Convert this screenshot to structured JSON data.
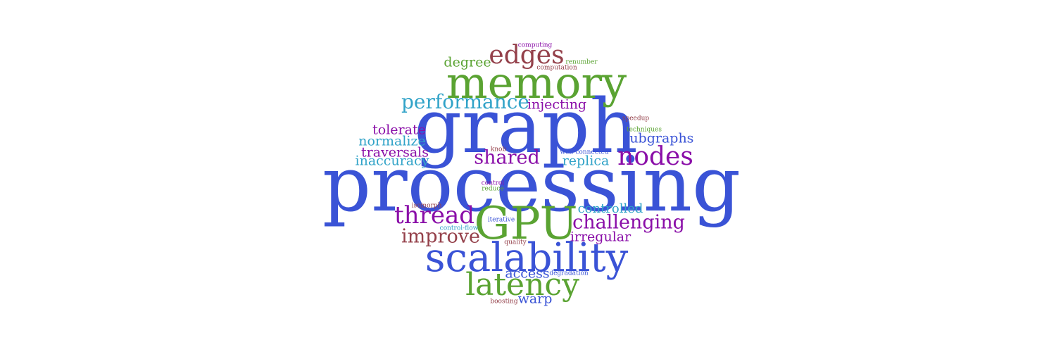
{
  "colors": {
    "blue": "#3a53d6",
    "green": "#5aa332",
    "purple": "#8a0ea8",
    "maroon": "#94404a",
    "cyan": "#31a3c8"
  },
  "words": [
    {
      "text": "processing",
      "color": "blue"
    },
    {
      "text": "graph",
      "color": "blue"
    },
    {
      "text": "memory",
      "color": "green"
    },
    {
      "text": "GPU",
      "color": "green"
    },
    {
      "text": "scalability",
      "color": "blue"
    },
    {
      "text": "latency",
      "color": "green"
    },
    {
      "text": "edges",
      "color": "maroon"
    },
    {
      "text": "nodes",
      "color": "purple"
    },
    {
      "text": "thread",
      "color": "purple"
    },
    {
      "text": "performance",
      "color": "cyan"
    },
    {
      "text": "challenging",
      "color": "purple"
    },
    {
      "text": "shared",
      "color": "purple"
    },
    {
      "text": "improve",
      "color": "maroon"
    },
    {
      "text": "degree",
      "color": "green"
    },
    {
      "text": "injecting",
      "color": "purple"
    },
    {
      "text": "tolerate",
      "color": "purple"
    },
    {
      "text": "normalize",
      "color": "cyan"
    },
    {
      "text": "traversals",
      "color": "purple"
    },
    {
      "text": "inaccuracy",
      "color": "cyan"
    },
    {
      "text": "subgraphs",
      "color": "blue"
    },
    {
      "text": "replica",
      "color": "cyan"
    },
    {
      "text": "controlled",
      "color": "cyan"
    },
    {
      "text": "irregular",
      "color": "purple"
    },
    {
      "text": "access",
      "color": "blue"
    },
    {
      "text": "warp",
      "color": "blue"
    },
    {
      "text": "computing",
      "color": "purple"
    },
    {
      "text": "renumber",
      "color": "green"
    },
    {
      "text": "computation",
      "color": "maroon"
    },
    {
      "text": "speedup",
      "color": "maroon"
    },
    {
      "text": "techniques",
      "color": "green"
    },
    {
      "text": "knob",
      "color": "maroon"
    },
    {
      "text": "well-connected",
      "color": "blue"
    },
    {
      "text": "control",
      "color": "purple"
    },
    {
      "text": "reduce",
      "color": "green"
    },
    {
      "text": "isomorph",
      "color": "maroon"
    },
    {
      "text": "iterative",
      "color": "blue"
    },
    {
      "text": "control-flow",
      "color": "cyan"
    },
    {
      "text": "quality",
      "color": "maroon"
    },
    {
      "text": "degradation",
      "color": "blue"
    },
    {
      "text": "boosting",
      "color": "maroon"
    }
  ]
}
